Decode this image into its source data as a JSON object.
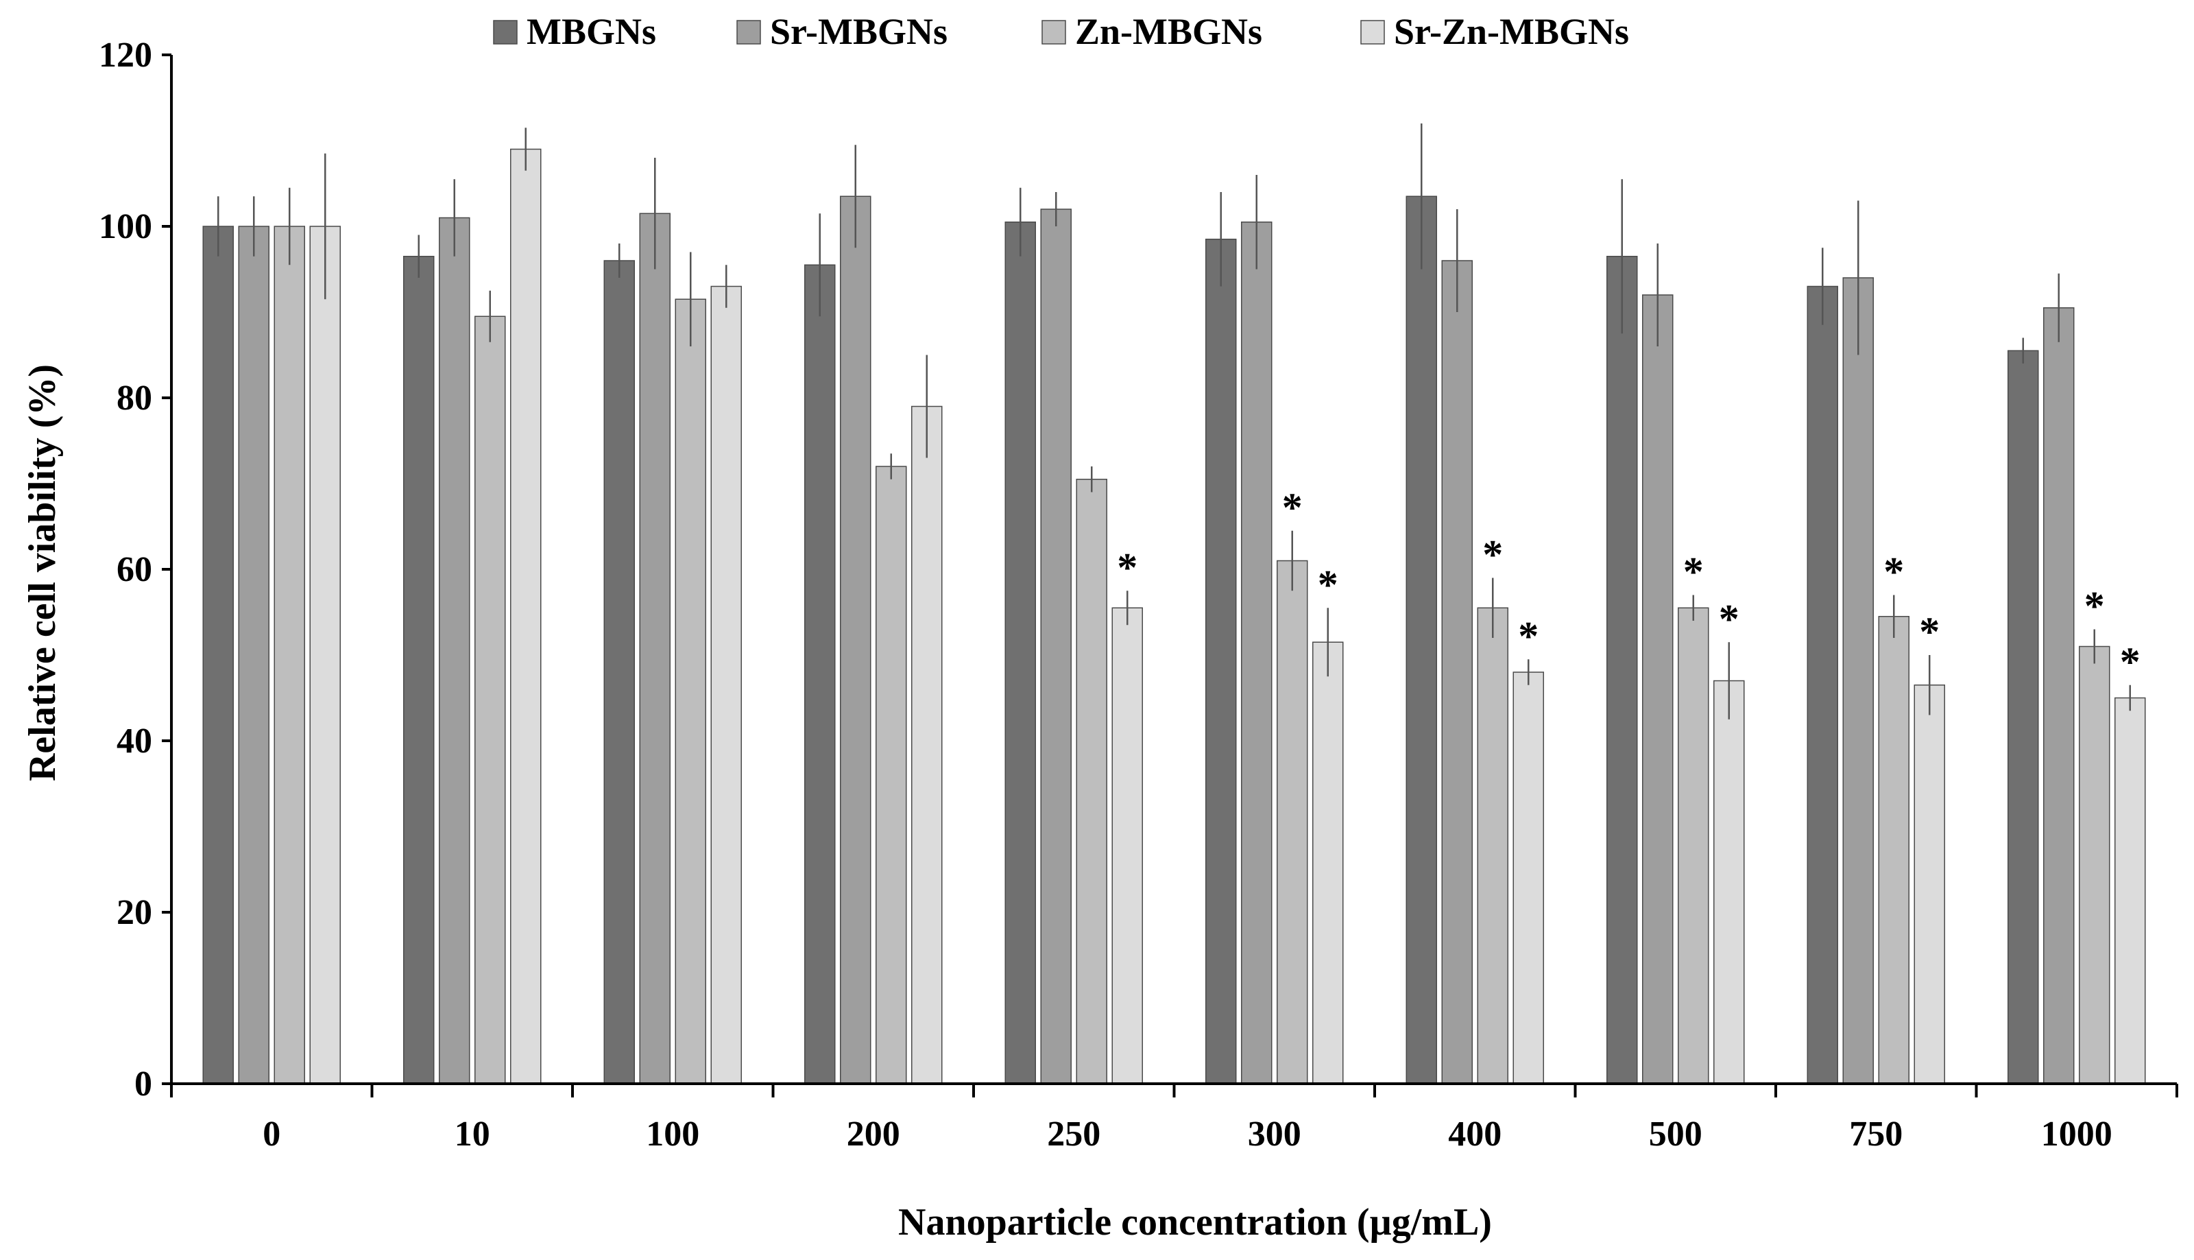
{
  "chart_data": {
    "type": "bar",
    "title": "",
    "xlabel": "Nanoparticle concentration (µg/mL)",
    "ylabel": "Relative cell viability (%)",
    "ylim": [
      0,
      120
    ],
    "yticks": [
      "0",
      "20",
      "40",
      "60",
      "80",
      "100",
      "120"
    ],
    "categories": [
      "0",
      "10",
      "100",
      "200",
      "250",
      "300",
      "400",
      "500",
      "750",
      "1000"
    ],
    "legend_position": "top-center",
    "series": [
      {
        "name": "MBGNs",
        "color": "#707070",
        "values": [
          100,
          96.5,
          96,
          95.5,
          100.5,
          98.5,
          103.5,
          96.5,
          93,
          85.5
        ],
        "errors": [
          3.5,
          2.5,
          2,
          6,
          4,
          5.5,
          8.5,
          9,
          4.5,
          1.5
        ],
        "significant": [
          false,
          false,
          false,
          false,
          false,
          false,
          false,
          false,
          false,
          false
        ]
      },
      {
        "name": "Sr-MBGNs",
        "color": "#9e9e9e",
        "values": [
          100,
          101,
          101.5,
          103.5,
          102,
          100.5,
          96,
          92,
          94,
          90.5
        ],
        "errors": [
          3.5,
          4.5,
          6.5,
          6,
          2,
          5.5,
          6,
          6,
          9,
          4
        ],
        "significant": [
          false,
          false,
          false,
          false,
          false,
          false,
          false,
          false,
          false,
          false
        ]
      },
      {
        "name": "Zn-MBGNs",
        "color": "#bebebe",
        "values": [
          100,
          89.5,
          91.5,
          72,
          70.5,
          61,
          55.5,
          55.5,
          54.5,
          51
        ],
        "errors": [
          4.5,
          3,
          5.5,
          1.5,
          1.5,
          3.5,
          3.5,
          1.5,
          2.5,
          2
        ],
        "significant": [
          false,
          false,
          false,
          false,
          false,
          true,
          true,
          true,
          true,
          true
        ]
      },
      {
        "name": "Sr-Zn-MBGNs",
        "color": "#dcdcdc",
        "values": [
          100,
          109,
          93,
          79,
          55.5,
          51.5,
          48,
          47,
          46.5,
          45
        ],
        "errors": [
          8.5,
          2.5,
          2.5,
          6,
          2,
          4,
          1.5,
          4.5,
          3.5,
          1.5
        ],
        "significant": [
          false,
          false,
          false,
          false,
          true,
          true,
          true,
          true,
          true,
          true
        ]
      }
    ],
    "significance_marker": "*",
    "grid": false
  }
}
